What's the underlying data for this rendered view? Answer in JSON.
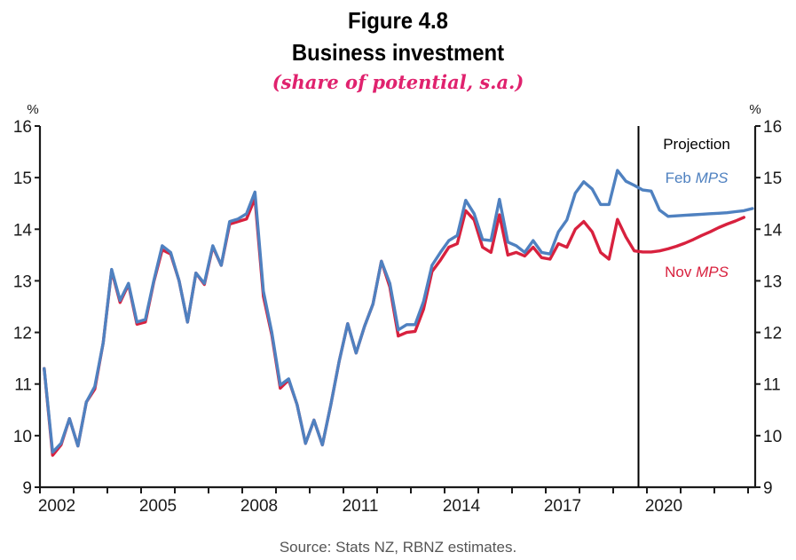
{
  "header": {
    "figure_number": "Figure 4.8",
    "title": "Business investment",
    "subtitle": "(share of potential, s.a.)"
  },
  "footer": {
    "source": "Source: Stats NZ, RBNZ estimates."
  },
  "colors": {
    "feb": "#4f81c0",
    "nov": "#d8213e",
    "subtitle": "#e0226e",
    "axis": "#1a1a1a"
  },
  "chart_data": {
    "type": "line",
    "title": "Business investment",
    "subtitle": "(share of potential, s.a.)",
    "xlabel": "",
    "ylabel_left": "%",
    "ylabel_right": "%",
    "ylim": [
      9,
      16
    ],
    "yticks": [
      9,
      10,
      11,
      12,
      13,
      14,
      15,
      16
    ],
    "xlim": [
      2002,
      2023.2
    ],
    "xtick_years": [
      2002,
      2003,
      2004,
      2005,
      2006,
      2007,
      2008,
      2009,
      2010,
      2011,
      2012,
      2013,
      2014,
      2015,
      2016,
      2017,
      2018,
      2019,
      2020,
      2021,
      2022,
      2023
    ],
    "xtick_labels": [
      "2002",
      "2005",
      "2008",
      "2011",
      "2014",
      "2017",
      "2020"
    ],
    "frequency": "quarterly",
    "start": "2002 Q1",
    "grid": false,
    "projection_start": 2019.75,
    "annotations": {
      "projection": "Projection",
      "feb_label_prefix": "Feb ",
      "feb_label_italic": "MPS",
      "nov_label_prefix": "Nov ",
      "nov_label_italic": "MPS"
    },
    "series": [
      {
        "name": "Feb MPS",
        "color": "#4f81c0",
        "values": [
          11.3,
          9.68,
          9.85,
          10.33,
          9.8,
          10.65,
          10.95,
          11.8,
          13.22,
          12.62,
          12.95,
          12.2,
          12.25,
          13.0,
          13.68,
          13.55,
          13.0,
          12.2,
          13.15,
          12.95,
          13.68,
          13.3,
          14.15,
          14.2,
          14.3,
          14.72,
          12.8,
          12.0,
          10.98,
          11.1,
          10.6,
          9.85,
          10.3,
          9.82,
          10.6,
          11.45,
          12.17,
          11.6,
          12.12,
          12.55,
          13.38,
          12.95,
          12.05,
          12.15,
          12.15,
          12.6,
          13.3,
          13.55,
          13.78,
          13.88,
          14.56,
          14.3,
          13.8,
          13.78,
          14.58,
          13.75,
          13.68,
          13.55,
          13.78,
          13.55,
          13.52,
          13.95,
          14.18,
          14.7,
          14.92,
          14.78,
          14.48,
          14.48,
          15.14,
          14.93,
          14.85,
          14.76,
          14.74,
          14.37,
          14.25,
          14.26,
          14.27,
          14.28,
          14.29,
          14.3,
          14.31,
          14.32,
          14.34,
          14.36,
          14.4
        ]
      },
      {
        "name": "Nov MPS",
        "color": "#d8213e",
        "values": [
          11.3,
          9.62,
          9.82,
          10.33,
          9.8,
          10.65,
          10.9,
          11.8,
          13.2,
          12.58,
          12.93,
          12.16,
          12.2,
          12.98,
          13.6,
          13.52,
          13.0,
          12.2,
          13.15,
          12.93,
          13.66,
          13.3,
          14.1,
          14.15,
          14.2,
          14.6,
          12.7,
          11.95,
          10.92,
          11.08,
          10.6,
          9.85,
          10.3,
          9.82,
          10.6,
          11.45,
          12.17,
          11.6,
          12.12,
          12.55,
          13.38,
          12.88,
          11.93,
          12.0,
          12.02,
          12.45,
          13.18,
          13.4,
          13.65,
          13.72,
          14.36,
          14.18,
          13.65,
          13.55,
          14.28,
          13.5,
          13.55,
          13.48,
          13.65,
          13.45,
          13.42,
          13.72,
          13.65,
          14.0,
          14.15,
          13.95,
          13.55,
          13.42,
          14.19,
          13.85,
          13.58,
          13.56,
          13.56,
          13.58,
          13.62,
          13.67,
          13.73,
          13.8,
          13.88,
          13.95,
          14.03,
          14.1,
          14.16,
          14.23
        ]
      }
    ]
  }
}
